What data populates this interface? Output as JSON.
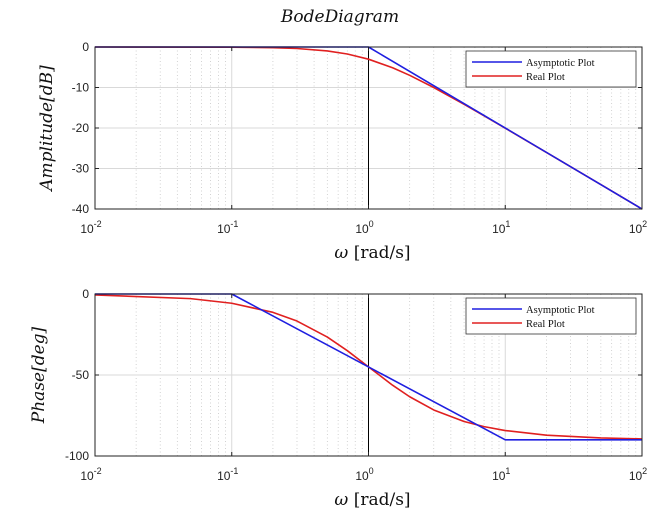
{
  "figure_title": "BodeDiagram",
  "chart_data": [
    {
      "type": "line",
      "xscale": "log",
      "xlim": [
        0.01,
        100
      ],
      "ylim": [
        -40,
        0
      ],
      "xticks": [
        0.01,
        0.1,
        1,
        10,
        100
      ],
      "xtick_labels": [
        {
          "base": "10",
          "exp": "-2"
        },
        {
          "base": "10",
          "exp": "-1"
        },
        {
          "base": "10",
          "exp": "0"
        },
        {
          "base": "10",
          "exp": "1"
        },
        {
          "base": "10",
          "exp": "2"
        }
      ],
      "yticks": [
        0,
        -10,
        -20,
        -30,
        -40
      ],
      "ytick_labels": [
        "0",
        "-10",
        "-20",
        "-30",
        "-40"
      ],
      "xlabel": {
        "symbol": "ω",
        "unit": "[rad/s]"
      },
      "ylabel": "Amplitude[dB]",
      "grid": true,
      "legend_position": "top-right",
      "vertical_line_x": 1,
      "series": [
        {
          "name": "Asymptotic Plot",
          "color": "#1f1fe0",
          "x": [
            0.01,
            1,
            100
          ],
          "y": [
            0,
            0,
            -40
          ]
        },
        {
          "name": "Real Plot",
          "color": "#e02020",
          "x": [
            0.01,
            0.1,
            0.2,
            0.3,
            0.5,
            0.7,
            1,
            1.5,
            2,
            3,
            5,
            7,
            10,
            20,
            50,
            100
          ],
          "y": [
            0,
            -0.04,
            -0.17,
            -0.37,
            -0.97,
            -1.73,
            -3.01,
            -5.12,
            -6.99,
            -10.0,
            -14.15,
            -17.0,
            -20.04,
            -26.03,
            -33.98,
            -40.0
          ]
        }
      ]
    },
    {
      "type": "line",
      "xscale": "log",
      "xlim": [
        0.01,
        100
      ],
      "ylim": [
        -100,
        0
      ],
      "xticks": [
        0.01,
        0.1,
        1,
        10,
        100
      ],
      "xtick_labels": [
        {
          "base": "10",
          "exp": "-2"
        },
        {
          "base": "10",
          "exp": "-1"
        },
        {
          "base": "10",
          "exp": "0"
        },
        {
          "base": "10",
          "exp": "1"
        },
        {
          "base": "10",
          "exp": "2"
        }
      ],
      "yticks": [
        0,
        -50,
        -100
      ],
      "ytick_labels": [
        "0",
        "-50",
        "-100"
      ],
      "xlabel": {
        "symbol": "ω",
        "unit": "[rad/s]"
      },
      "ylabel": "Phase[deg]",
      "grid": true,
      "legend_position": "top-right",
      "vertical_line_x": 1,
      "series": [
        {
          "name": "Asymptotic Plot",
          "color": "#1f1fe0",
          "x": [
            0.01,
            0.1,
            10,
            100
          ],
          "y": [
            0,
            0,
            -90,
            -90
          ]
        },
        {
          "name": "Real Plot",
          "color": "#e02020",
          "x": [
            0.01,
            0.05,
            0.1,
            0.2,
            0.3,
            0.5,
            0.7,
            1,
            1.5,
            2,
            3,
            5,
            7,
            10,
            20,
            50,
            100
          ],
          "y": [
            -0.57,
            -2.86,
            -5.71,
            -11.31,
            -16.7,
            -26.57,
            -34.99,
            -45.0,
            -56.31,
            -63.43,
            -71.57,
            -78.69,
            -81.87,
            -84.29,
            -87.14,
            -88.85,
            -89.43
          ]
        }
      ]
    }
  ]
}
